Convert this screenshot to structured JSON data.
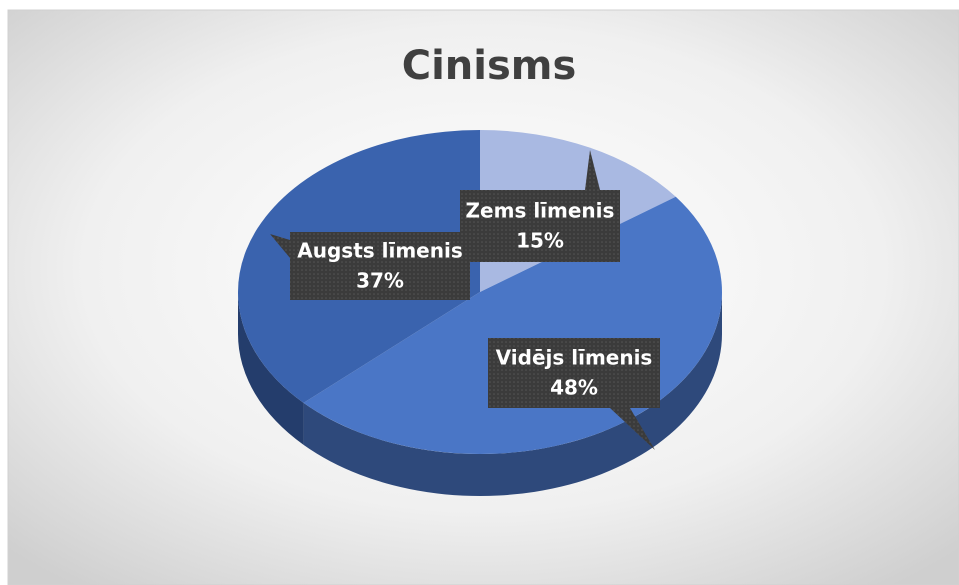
{
  "chart_data": {
    "type": "pie",
    "title": "Cinisms",
    "categories": [
      "Zems līmenis",
      "Vidējs līmenis",
      "Augsts līmenis"
    ],
    "values": [
      15,
      48,
      37
    ],
    "value_labels": [
      "15%",
      "48%",
      "37%"
    ],
    "colors": [
      "#a9b9e2",
      "#4a76c6",
      "#3a63ae"
    ]
  }
}
